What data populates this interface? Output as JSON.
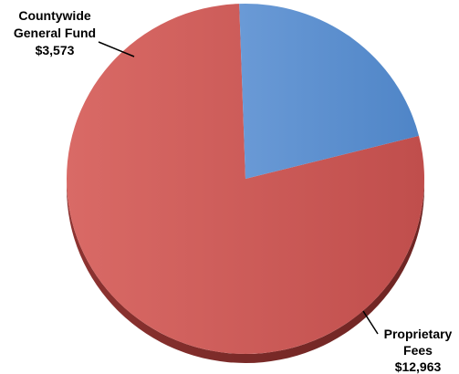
{
  "chart_data": {
    "type": "pie",
    "title": "",
    "slices": [
      {
        "label_lines": [
          "Countywide",
          "General Fund",
          "$3,573"
        ],
        "value": 3573,
        "color": "#5b8fcf"
      },
      {
        "label_lines": [
          "Proprietary",
          "Fees",
          "$12,963"
        ],
        "value": 12963,
        "color": "#cd5b59"
      }
    ],
    "legend": "none",
    "labels": "outside-with-leader-lines"
  }
}
